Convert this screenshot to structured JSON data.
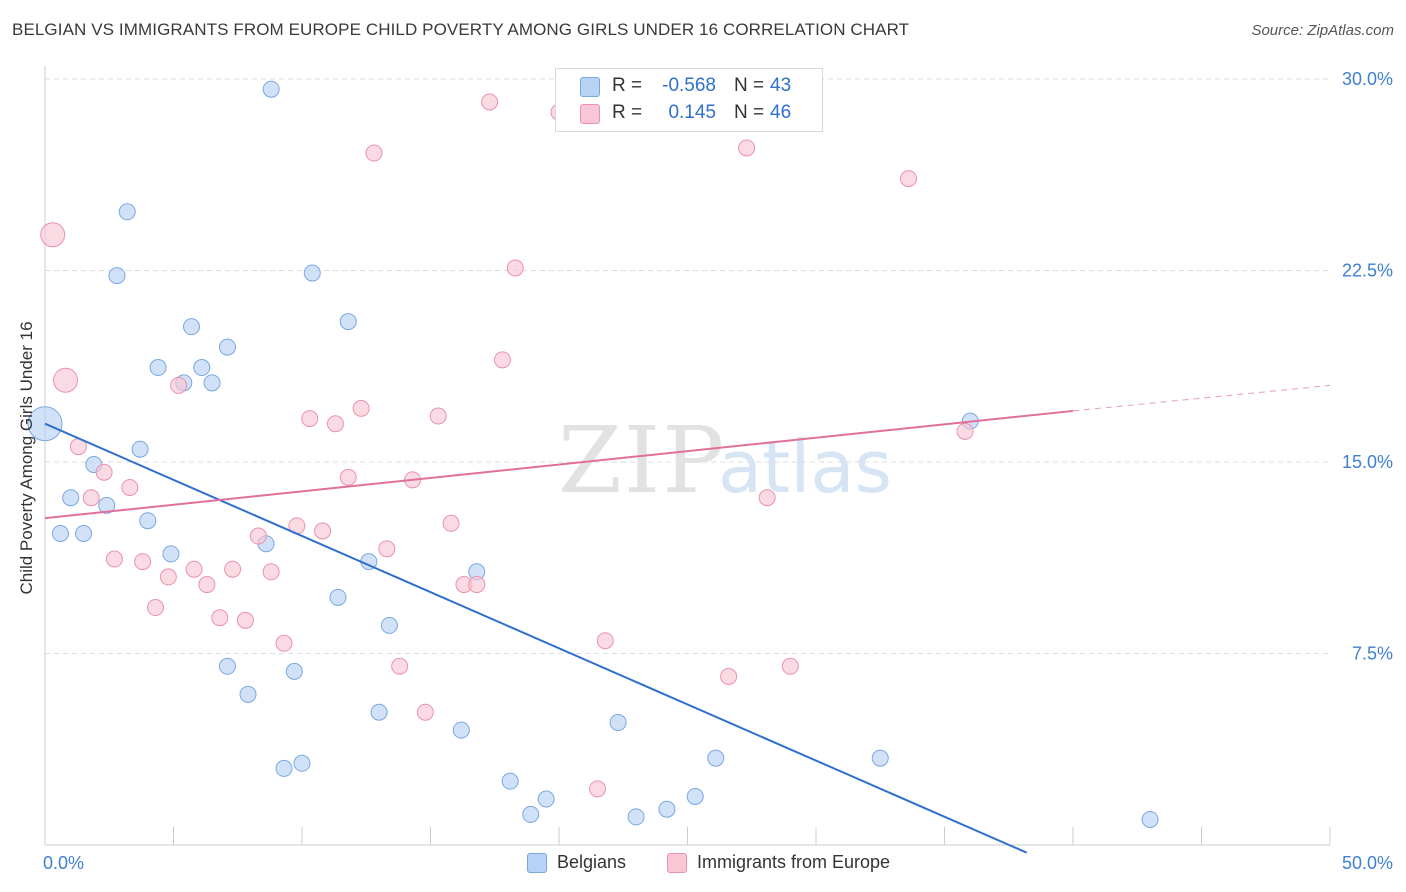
{
  "title": "BELGIAN VS IMMIGRANTS FROM EUROPE CHILD POVERTY AMONG GIRLS UNDER 16 CORRELATION CHART",
  "source": "Source: ZipAtlas.com",
  "watermark": {
    "zip": "ZIP",
    "atlas": "atlas"
  },
  "legend": {
    "rows": [
      {
        "r_label": "R =",
        "r_value": "-0.568",
        "n_label": "N =",
        "n_value": "43"
      },
      {
        "r_label": "R =",
        "r_value": "0.145",
        "n_label": "N =",
        "n_value": "46"
      }
    ]
  },
  "colors": {
    "belgian_fill": "#b8d2f5",
    "belgian_stroke": "#7aa7e3",
    "belgian_line": "#2f6fd0",
    "europe_fill": "#f8c6d4",
    "europe_stroke": "#eb92ad",
    "europe_line": "#e0709a",
    "axis_text": "#3f7fd1",
    "grid": "#dddddd"
  },
  "chart_data": {
    "type": "scatter",
    "title": "BELGIAN VS IMMIGRANTS FROM EUROPE CHILD POVERTY AMONG GIRLS UNDER 16 CORRELATION CHART",
    "xlabel": "",
    "ylabel": "Child Poverty Among Girls Under 16",
    "xlim": [
      0,
      50
    ],
    "ylim": [
      0,
      30
    ],
    "x_tick_labels": [
      "0.0%",
      "50.0%"
    ],
    "y_ticks": [
      7.5,
      15.0,
      22.5,
      30.0
    ],
    "y_tick_labels": [
      "7.5%",
      "15.0%",
      "22.5%",
      "30.0%"
    ],
    "grid": true,
    "legend_position": "top-center",
    "series": [
      {
        "name": "Belgians",
        "color": "#b8d2f5",
        "trend": {
          "x": [
            0,
            38.2
          ],
          "y": [
            16.5,
            -0.3
          ],
          "dashed_to": null
        },
        "points": [
          {
            "x": 0.0,
            "y": 16.5,
            "big": 2
          },
          {
            "x": 0.6,
            "y": 12.2
          },
          {
            "x": 1.0,
            "y": 13.6
          },
          {
            "x": 1.5,
            "y": 12.2
          },
          {
            "x": 1.9,
            "y": 14.9
          },
          {
            "x": 2.4,
            "y": 13.3
          },
          {
            "x": 2.8,
            "y": 22.3
          },
          {
            "x": 3.2,
            "y": 24.8
          },
          {
            "x": 3.7,
            "y": 15.5
          },
          {
            "x": 4.0,
            "y": 12.7
          },
          {
            "x": 4.4,
            "y": 18.7
          },
          {
            "x": 4.9,
            "y": 11.4
          },
          {
            "x": 5.4,
            "y": 18.1
          },
          {
            "x": 5.7,
            "y": 20.3
          },
          {
            "x": 6.1,
            "y": 18.7
          },
          {
            "x": 6.5,
            "y": 18.1
          },
          {
            "x": 7.1,
            "y": 19.5
          },
          {
            "x": 7.1,
            "y": 7.0
          },
          {
            "x": 7.9,
            "y": 5.9
          },
          {
            "x": 8.6,
            "y": 11.8
          },
          {
            "x": 8.8,
            "y": 29.6
          },
          {
            "x": 9.3,
            "y": 3.0
          },
          {
            "x": 9.7,
            "y": 6.8
          },
          {
            "x": 10.0,
            "y": 3.2
          },
          {
            "x": 10.4,
            "y": 22.4
          },
          {
            "x": 11.4,
            "y": 9.7
          },
          {
            "x": 11.8,
            "y": 20.5
          },
          {
            "x": 12.6,
            "y": 11.1
          },
          {
            "x": 13.0,
            "y": 5.2
          },
          {
            "x": 13.4,
            "y": 8.6
          },
          {
            "x": 16.2,
            "y": 4.5
          },
          {
            "x": 16.8,
            "y": 10.7
          },
          {
            "x": 18.1,
            "y": 2.5
          },
          {
            "x": 18.9,
            "y": 1.2
          },
          {
            "x": 19.5,
            "y": 1.8
          },
          {
            "x": 22.3,
            "y": 4.8
          },
          {
            "x": 23.0,
            "y": 1.1
          },
          {
            "x": 24.2,
            "y": 1.4
          },
          {
            "x": 25.3,
            "y": 1.9
          },
          {
            "x": 26.1,
            "y": 3.4
          },
          {
            "x": 32.5,
            "y": 3.4
          },
          {
            "x": 36.0,
            "y": 16.6
          },
          {
            "x": 43.0,
            "y": 1.0
          }
        ]
      },
      {
        "name": "Immigrants from Europe",
        "color": "#f8c6d4",
        "trend": {
          "x": [
            0,
            40.0
          ],
          "y": [
            12.8,
            17.0
          ],
          "dashed_to": [
            50.0,
            18.0
          ]
        },
        "points": [
          {
            "x": 0.3,
            "y": 23.9,
            "big": 1
          },
          {
            "x": 0.8,
            "y": 18.2,
            "big": 1
          },
          {
            "x": 1.3,
            "y": 15.6
          },
          {
            "x": 1.8,
            "y": 13.6
          },
          {
            "x": 2.3,
            "y": 14.6
          },
          {
            "x": 2.7,
            "y": 11.2
          },
          {
            "x": 3.3,
            "y": 14.0
          },
          {
            "x": 3.8,
            "y": 11.1
          },
          {
            "x": 4.3,
            "y": 9.3
          },
          {
            "x": 4.8,
            "y": 10.5
          },
          {
            "x": 5.2,
            "y": 18.0
          },
          {
            "x": 5.8,
            "y": 10.8
          },
          {
            "x": 6.3,
            "y": 10.2
          },
          {
            "x": 6.8,
            "y": 8.9
          },
          {
            "x": 7.3,
            "y": 10.8
          },
          {
            "x": 7.8,
            "y": 8.8
          },
          {
            "x": 8.3,
            "y": 12.1
          },
          {
            "x": 8.8,
            "y": 10.7
          },
          {
            "x": 9.3,
            "y": 7.9
          },
          {
            "x": 9.8,
            "y": 12.5
          },
          {
            "x": 10.3,
            "y": 16.7
          },
          {
            "x": 10.8,
            "y": 12.3
          },
          {
            "x": 11.3,
            "y": 16.5
          },
          {
            "x": 11.8,
            "y": 14.4
          },
          {
            "x": 12.3,
            "y": 17.1
          },
          {
            "x": 12.8,
            "y": 27.1
          },
          {
            "x": 13.3,
            "y": 11.6
          },
          {
            "x": 13.8,
            "y": 7.0
          },
          {
            "x": 14.3,
            "y": 14.3
          },
          {
            "x": 14.8,
            "y": 5.2
          },
          {
            "x": 15.3,
            "y": 16.8
          },
          {
            "x": 15.8,
            "y": 12.6
          },
          {
            "x": 16.3,
            "y": 10.2
          },
          {
            "x": 16.8,
            "y": 10.2
          },
          {
            "x": 17.3,
            "y": 29.1
          },
          {
            "x": 17.8,
            "y": 19.0
          },
          {
            "x": 18.3,
            "y": 22.6
          },
          {
            "x": 20.0,
            "y": 28.7
          },
          {
            "x": 21.5,
            "y": 2.2
          },
          {
            "x": 21.8,
            "y": 8.0
          },
          {
            "x": 26.6,
            "y": 6.6
          },
          {
            "x": 27.3,
            "y": 27.3
          },
          {
            "x": 28.1,
            "y": 13.6
          },
          {
            "x": 29.0,
            "y": 7.0
          },
          {
            "x": 33.6,
            "y": 26.1
          },
          {
            "x": 35.8,
            "y": 16.2
          }
        ]
      }
    ]
  },
  "bottom_legend": {
    "items": [
      {
        "label": "Belgians"
      },
      {
        "label": "Immigrants from Europe"
      }
    ]
  }
}
